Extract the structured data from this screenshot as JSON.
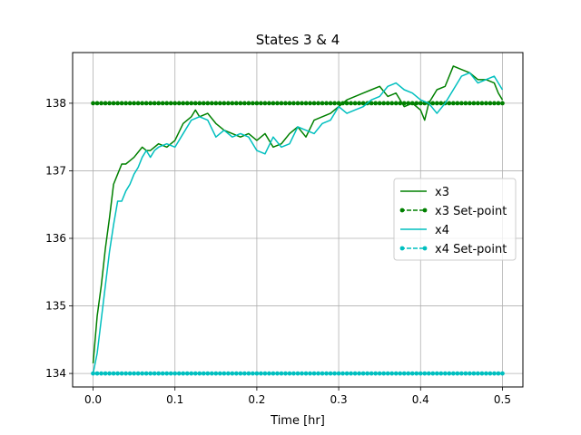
{
  "chart_data": {
    "type": "line",
    "title": "States 3 & 4",
    "xlabel": "Time [hr]",
    "ylabel": "",
    "xlim": [
      -0.025,
      0.525
    ],
    "ylim": [
      133.8,
      138.75
    ],
    "xticks": [
      0.0,
      0.1,
      0.2,
      0.3,
      0.4,
      0.5
    ],
    "xtick_labels": [
      "0.0",
      "0.1",
      "0.2",
      "0.3",
      "0.4",
      "0.5"
    ],
    "yticks": [
      134,
      135,
      136,
      137,
      138
    ],
    "ytick_labels": [
      "134",
      "135",
      "136",
      "137",
      "138"
    ],
    "grid": true,
    "legend_position": "center-right",
    "series": [
      {
        "name": "x3",
        "color": "#008000",
        "style": "solid",
        "x": [
          0.0,
          0.005,
          0.01,
          0.015,
          0.02,
          0.025,
          0.03,
          0.035,
          0.04,
          0.045,
          0.05,
          0.06,
          0.065,
          0.07,
          0.08,
          0.09,
          0.1,
          0.11,
          0.12,
          0.125,
          0.13,
          0.14,
          0.15,
          0.16,
          0.17,
          0.18,
          0.19,
          0.2,
          0.21,
          0.22,
          0.23,
          0.24,
          0.25,
          0.26,
          0.27,
          0.28,
          0.29,
          0.3,
          0.31,
          0.32,
          0.33,
          0.34,
          0.35,
          0.36,
          0.37,
          0.38,
          0.39,
          0.4,
          0.405,
          0.41,
          0.42,
          0.43,
          0.44,
          0.45,
          0.46,
          0.47,
          0.48,
          0.49,
          0.495,
          0.5
        ],
        "y": [
          134.15,
          134.85,
          135.3,
          135.85,
          136.3,
          136.8,
          136.95,
          137.1,
          137.1,
          137.15,
          137.2,
          137.35,
          137.3,
          137.3,
          137.4,
          137.35,
          137.45,
          137.7,
          137.8,
          137.9,
          137.8,
          137.85,
          137.7,
          137.6,
          137.55,
          137.5,
          137.55,
          137.45,
          137.55,
          137.35,
          137.4,
          137.55,
          137.65,
          137.5,
          137.75,
          137.8,
          137.85,
          137.95,
          138.05,
          138.1,
          138.15,
          138.2,
          138.25,
          138.1,
          138.15,
          137.95,
          138.0,
          137.9,
          137.75,
          138.0,
          138.2,
          138.25,
          138.55,
          138.5,
          138.45,
          138.35,
          138.35,
          138.3,
          138.15,
          138.05
        ]
      },
      {
        "name": "x3 Set-point",
        "color": "#008000",
        "style": "dashed-dots",
        "x": [
          0.0,
          0.5
        ],
        "y": [
          138,
          138
        ]
      },
      {
        "name": "x4",
        "color": "#00bfbf",
        "style": "solid",
        "x": [
          0.0,
          0.005,
          0.01,
          0.015,
          0.02,
          0.025,
          0.03,
          0.035,
          0.04,
          0.045,
          0.05,
          0.055,
          0.06,
          0.065,
          0.07,
          0.075,
          0.08,
          0.09,
          0.1,
          0.11,
          0.12,
          0.13,
          0.14,
          0.15,
          0.16,
          0.17,
          0.18,
          0.19,
          0.2,
          0.21,
          0.22,
          0.23,
          0.24,
          0.25,
          0.26,
          0.27,
          0.28,
          0.29,
          0.3,
          0.31,
          0.32,
          0.33,
          0.34,
          0.35,
          0.36,
          0.37,
          0.38,
          0.39,
          0.4,
          0.41,
          0.42,
          0.43,
          0.44,
          0.45,
          0.46,
          0.47,
          0.48,
          0.49,
          0.5
        ],
        "y": [
          134.0,
          134.3,
          134.8,
          135.3,
          135.8,
          136.2,
          136.55,
          136.55,
          136.7,
          136.8,
          136.95,
          137.05,
          137.2,
          137.3,
          137.2,
          137.3,
          137.35,
          137.4,
          137.35,
          137.55,
          137.75,
          137.8,
          137.75,
          137.5,
          137.6,
          137.5,
          137.55,
          137.5,
          137.3,
          137.25,
          137.5,
          137.35,
          137.4,
          137.65,
          137.6,
          137.55,
          137.7,
          137.75,
          137.95,
          137.85,
          137.9,
          137.95,
          138.05,
          138.1,
          138.25,
          138.3,
          138.2,
          138.15,
          138.05,
          138.0,
          137.85,
          138.0,
          138.2,
          138.4,
          138.45,
          138.3,
          138.35,
          138.4,
          138.2
        ]
      },
      {
        "name": "x4 Set-point",
        "color": "#00bfbf",
        "style": "dashed-dots",
        "x": [
          0.0,
          0.5
        ],
        "y": [
          134,
          134
        ]
      }
    ]
  }
}
